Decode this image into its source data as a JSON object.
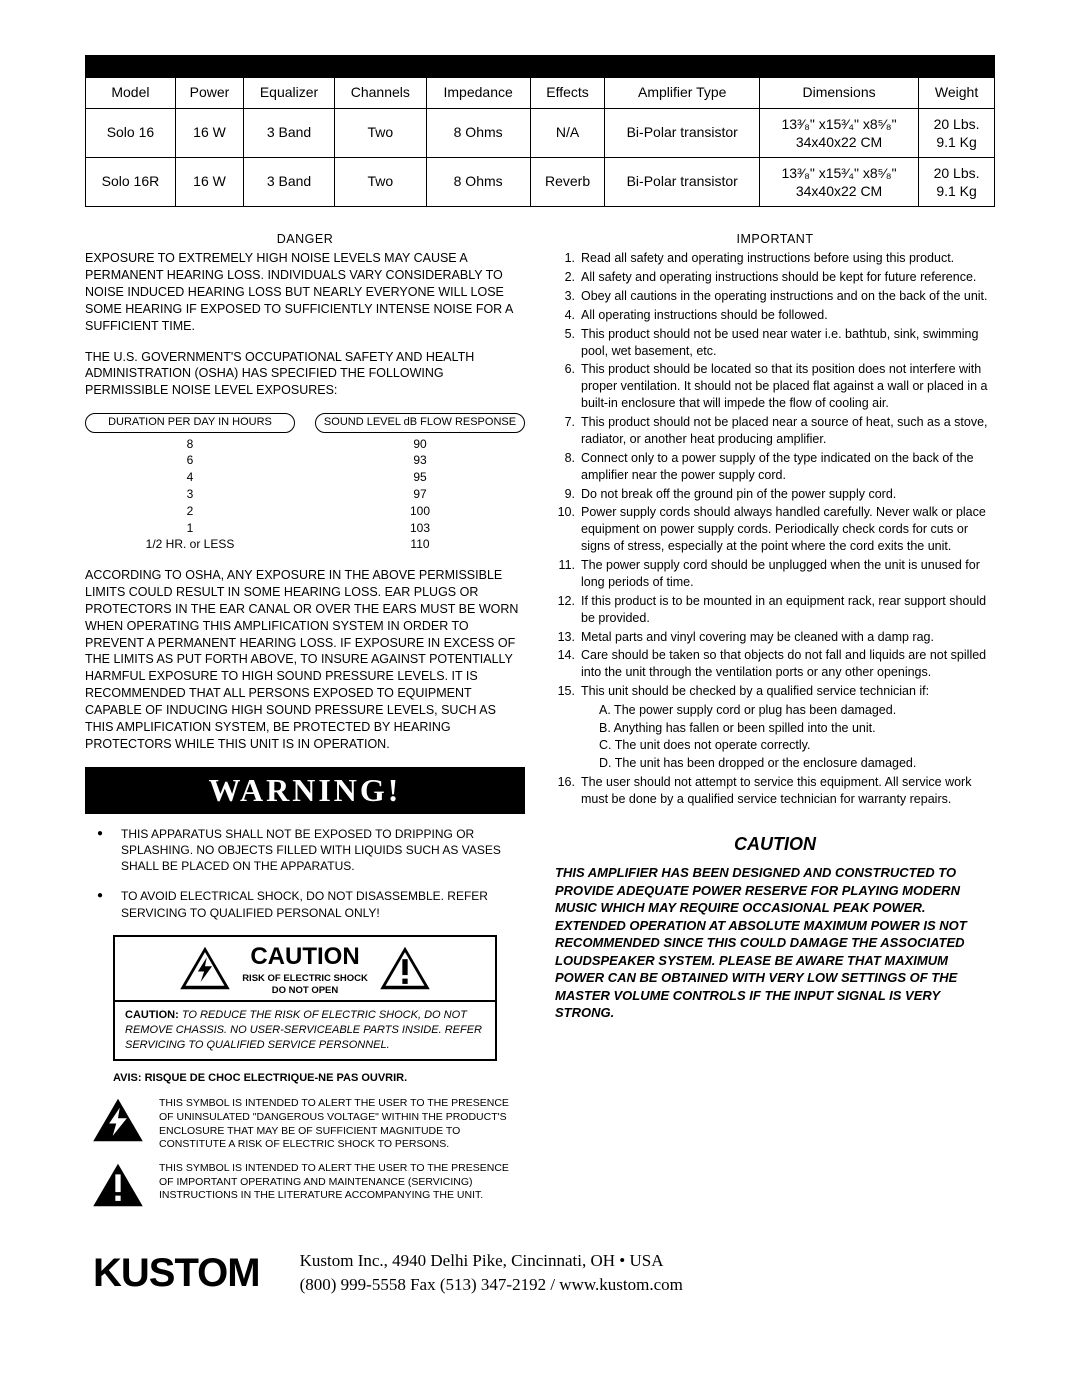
{
  "spec_table": {
    "headers": [
      "Model",
      "Power",
      "Equalizer",
      "Channels",
      "Impedance",
      "Effects",
      "Amplifier Type",
      "Dimensions",
      "Weight"
    ],
    "rows": [
      {
        "model": "Solo 16",
        "power": "16 W",
        "eq": "3 Band",
        "ch": "Two",
        "imp": "8 Ohms",
        "fx": "N/A",
        "amp": "Bi-Polar transistor",
        "dim1": "13³⁄₈\" x15³⁄₄\" x8⁵⁄₈\"",
        "dim2": "34x40x22 CM",
        "wt1": "20 Lbs.",
        "wt2": "9.1 Kg"
      },
      {
        "model": "Solo 16R",
        "power": "16 W",
        "eq": "3 Band",
        "ch": "Two",
        "imp": "8 Ohms",
        "fx": "Reverb",
        "amp": "Bi-Polar transistor",
        "dim1": "13³⁄₈\" x15³⁄₄\" x8⁵⁄₈\"",
        "dim2": "34x40x22 CM",
        "wt1": "20 Lbs.",
        "wt2": "9.1 Kg"
      }
    ]
  },
  "left": {
    "danger_title": "DANGER",
    "danger_p1": "EXPOSURE TO EXTREMELY HIGH NOISE LEVELS MAY CAUSE A PERMANENT HEARING LOSS. INDIVIDUALS VARY CONSIDERABLY TO NOISE INDUCED HEARING LOSS BUT NEARLY EVERYONE WILL LOSE SOME HEARING IF EXPOSED TO SUFFICIENTLY INTENSE NOISE FOR A SUFFICIENT TIME.",
    "danger_p2": "THE U.S. GOVERNMENT'S OCCUPATIONAL SAFETY AND HEALTH ADMINISTRATION (OSHA) HAS SPECIFIED THE FOLLOWING PERMISSIBLE NOISE LEVEL EXPOSURES:",
    "osha": {
      "left_head": "DURATION PER DAY IN HOURS",
      "right_head": "SOUND LEVEL dB FLOW RESPONSE",
      "left_vals": [
        "8",
        "6",
        "4",
        "3",
        "2",
        "1",
        "1/2  HR. or LESS"
      ],
      "right_vals": [
        "90",
        "93",
        "95",
        "97",
        "100",
        "103",
        "110"
      ]
    },
    "osha_para": "ACCORDING TO OSHA, ANY EXPOSURE IN THE ABOVE PERMISSIBLE LIMITS COULD RESULT IN SOME HEARING LOSS. EAR PLUGS OR PROTECTORS IN THE  EAR CANAL OR OVER THE EARS MUST BE WORN WHEN OPERATING THIS AMPLIFICATION SYSTEM IN ORDER TO PREVENT A PERMANENT HEARING LOSS. IF EXPOSURE IN EXCESS OF THE LIMITS AS PUT FORTH ABOVE, TO INSURE  AGAINST POTENTIALLY HARMFUL EXPOSURE TO HIGH SOUND PRESSURE  LEVELS. IT IS RECOMMENDED THAT ALL PERSONS EXPOSED TO EQUIPMENT CAPABLE OF INDUCING HIGH SOUND PRESSURE LEVELS, SUCH AS THIS AMPLIFICATION SYSTEM, BE PROTECTED BY  HEARING PROTECTORS WHILE THIS UNIT IS IN OPERATION.",
    "warning_label": "WARNING!",
    "bullet1": "THIS APPARATUS SHALL NOT BE EXPOSED TO DRIPPING OR SPLASHING. NO OBJECTS FILLED WITH LIQUIDS SUCH AS VASES SHALL BE PLACED ON THE APPARATUS.",
    "bullet2": "TO AVOID ELECTRICAL SHOCK, DO NOT DISASSEMBLE. REFER SERVICING TO QUALIFIED PERSONAL ONLY!",
    "caution_big": "CAUTION",
    "caution_l1": "RISK OF ELECTRIC SHOCK",
    "caution_l2": "DO NOT OPEN",
    "caution_body_bold": "CAUTION:",
    "caution_body": " TO REDUCE THE RISK OF ELECTRIC SHOCK, DO NOT REMOVE CHASSIS. NO USER-SERVICEABLE PARTS INSIDE. REFER SERVICING TO QUALIFIED SERVICE PERSONNEL.",
    "avis": "AVIS:   RISQUE DE CHOC ELECTRIQUE-NE PAS OUVRIR.",
    "sym1": "THIS SYMBOL IS INTENDED TO ALERT THE USER TO THE PRESENCE OF UNINSULATED \"DANGEROUS VOLTAGE\" WITHIN THE PRODUCT'S ENCLOSURE THAT MAY BE OF SUFFICIENT MAGNITUDE TO CONSTITUTE  A RISK OF ELECTRIC SHOCK TO PERSONS.",
    "sym2": "THIS SYMBOL IS INTENDED TO ALERT THE USER TO THE PRESENCE OF IMPORTANT OPERATING AND MAINTENANCE (SERVICING) INSTRUCTIONS IN THE LITERATURE ACCOMPANYING THE UNIT."
  },
  "right": {
    "important_title": "IMPORTANT",
    "items": [
      "Read all safety and operating instructions before using this product.",
      "All safety and operating instructions should be kept for future reference.",
      "Obey all cautions in the operating instructions and on the back of the unit.",
      "All operating instructions should be followed.",
      "This product should not be used near water i.e. bathtub, sink, swimming pool, wet basement, etc.",
      "This product should be located so that its position does not interfere with proper ventilation. It should not be placed flat against a wall or   placed in a built-in enclosure that will impede the flow of cooling air.",
      "This product should not be placed near a source of heat, such as a stove, radiator, or another heat  producing amplifier.",
      "Connect only to a power supply of the type indicated on the back of the amplifier near the power supply cord.",
      "Do not break off the ground pin of the power supply cord.",
      "Power supply cords should always handled carefully. Never walk or place equipment on power supply cords. Periodically check cords for cuts or signs of stress, especially at the point where the cord exits the unit.",
      "The power supply cord should be unplugged when the unit is unused for long periods of time.",
      "If this product is to be mounted in an equipment rack, rear support should be provided.",
      "Metal parts and vinyl covering may be cleaned with a damp rag.",
      "Care should be taken so that objects do not fall and liquids are not spilled into the unit through the ventilation ports or any other openings.",
      "This unit should be checked by a qualified service technician if:"
    ],
    "sub15": [
      "A. The power supply cord or plug has been damaged.",
      "B. Anything has fallen or been spilled into the unit.",
      "C. The unit does not operate correctly.",
      "D. The unit has been dropped or the enclosure damaged."
    ],
    "item16": " The user should not attempt to service this equipment. All service work must be done by a qualified service technician for warranty repairs.",
    "caution_title": "CAUTION",
    "caution_body": "THIS AMPLIFIER HAS BEEN DESIGNED AND CONSTRUCTED TO PROVIDE ADEQUATE POWER RESERVE FOR PLAYING MODERN MUSIC WHICH MAY REQUIRE OCCASIONAL PEAK POWER. EXTENDED OPERATION AT ABSOLUTE MAXIMUM POWER IS NOT RECOMMENDED SINCE THIS COULD DAMAGE THE ASSOCIATED LOUDSPEAKER SYSTEM. PLEASE BE AWARE THAT MAXIMUM POWER CAN BE OBTAINED WITH VERY LOW SETTINGS OF THE MASTER VOLUME CONTROLS IF THE INPUT SIGNAL IS VERY STRONG."
  },
  "footer": {
    "logo": "KUSTOM",
    "line1": "Kustom Inc., 4940 Delhi Pike, Cincinnati, OH • USA",
    "line2": "(800) 999-5558  Fax  (513) 347-2192 / www.kustom.com"
  },
  "colors": {
    "black": "#000000",
    "white": "#ffffff"
  }
}
